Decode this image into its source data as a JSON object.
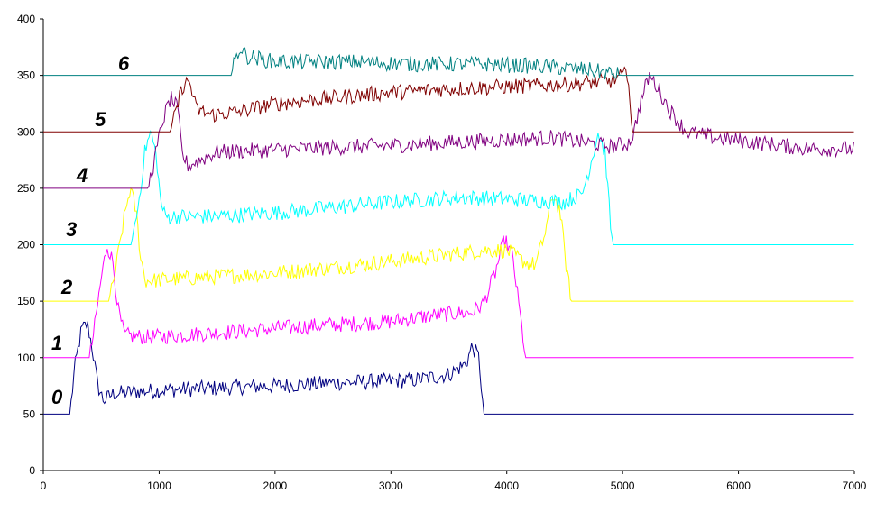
{
  "chart_data": {
    "type": "line",
    "title": "",
    "xlabel": "",
    "ylabel": "",
    "xlim": [
      0,
      7000
    ],
    "ylim": [
      0,
      400
    ],
    "x_ticks": [
      "0",
      "1000",
      "2000",
      "3000",
      "4000",
      "5000",
      "6000",
      "7000"
    ],
    "y_ticks": [
      "0",
      "50",
      "100",
      "150",
      "200",
      "250",
      "300",
      "350",
      "400"
    ],
    "grid": false,
    "legend": "none",
    "series": [
      {
        "label": "0",
        "color": "#000080",
        "baseline": 50,
        "points": [
          [
            0,
            50
          ],
          [
            230,
            50
          ],
          [
            270,
            90
          ],
          [
            330,
            125
          ],
          [
            380,
            130
          ],
          [
            420,
            110
          ],
          [
            470,
            75
          ],
          [
            520,
            62
          ],
          [
            600,
            68
          ],
          [
            800,
            70
          ],
          [
            1200,
            72
          ],
          [
            2000,
            75
          ],
          [
            2600,
            78
          ],
          [
            3200,
            80
          ],
          [
            3500,
            85
          ],
          [
            3650,
            95
          ],
          [
            3700,
            110
          ],
          [
            3760,
            100
          ],
          [
            3800,
            50
          ],
          [
            7000,
            50
          ]
        ]
      },
      {
        "label": "1",
        "color": "#ff00ff",
        "baseline": 100,
        "points": [
          [
            0,
            100
          ],
          [
            400,
            100
          ],
          [
            440,
            125
          ],
          [
            500,
            170
          ],
          [
            550,
            200
          ],
          [
            600,
            185
          ],
          [
            650,
            140
          ],
          [
            700,
            120
          ],
          [
            900,
            118
          ],
          [
            1500,
            122
          ],
          [
            2300,
            128
          ],
          [
            3000,
            132
          ],
          [
            3400,
            138
          ],
          [
            3700,
            140
          ],
          [
            3800,
            148
          ],
          [
            3900,
            175
          ],
          [
            3980,
            205
          ],
          [
            4050,
            190
          ],
          [
            4100,
            150
          ],
          [
            4150,
            110
          ],
          [
            4160,
            100
          ],
          [
            7000,
            100
          ]
        ]
      },
      {
        "label": "2",
        "color": "#ffff00",
        "baseline": 150,
        "points": [
          [
            0,
            150
          ],
          [
            570,
            150
          ],
          [
            620,
            175
          ],
          [
            700,
            225
          ],
          [
            750,
            250
          ],
          [
            800,
            230
          ],
          [
            840,
            190
          ],
          [
            880,
            168
          ],
          [
            1200,
            170
          ],
          [
            2000,
            175
          ],
          [
            2800,
            183
          ],
          [
            3400,
            190
          ],
          [
            3800,
            195
          ],
          [
            4000,
            195
          ],
          [
            4150,
            185
          ],
          [
            4250,
            182
          ],
          [
            4330,
            210
          ],
          [
            4400,
            245
          ],
          [
            4460,
            230
          ],
          [
            4520,
            175
          ],
          [
            4560,
            150
          ],
          [
            7000,
            150
          ]
        ]
      },
      {
        "label": "3",
        "color": "#00ffff",
        "baseline": 200,
        "points": [
          [
            0,
            200
          ],
          [
            760,
            200
          ],
          [
            820,
            235
          ],
          [
            880,
            285
          ],
          [
            930,
            300
          ],
          [
            980,
            275
          ],
          [
            1010,
            240
          ],
          [
            1050,
            225
          ],
          [
            1500,
            225
          ],
          [
            2200,
            230
          ],
          [
            3000,
            238
          ],
          [
            3600,
            242
          ],
          [
            4100,
            240
          ],
          [
            4500,
            238
          ],
          [
            4650,
            245
          ],
          [
            4720,
            270
          ],
          [
            4790,
            300
          ],
          [
            4850,
            280
          ],
          [
            4890,
            225
          ],
          [
            4910,
            200
          ],
          [
            7000,
            200
          ]
        ]
      },
      {
        "label": "4",
        "color": "#800080",
        "baseline": 250,
        "points": [
          [
            0,
            250
          ],
          [
            900,
            250
          ],
          [
            960,
            275
          ],
          [
            1030,
            310
          ],
          [
            1100,
            330
          ],
          [
            1160,
            320
          ],
          [
            1200,
            280
          ],
          [
            1250,
            270
          ],
          [
            1500,
            282
          ],
          [
            2200,
            285
          ],
          [
            3000,
            288
          ],
          [
            3800,
            292
          ],
          [
            4400,
            295
          ],
          [
            4900,
            287
          ],
          [
            5050,
            290
          ],
          [
            5100,
            300
          ],
          [
            5150,
            325
          ],
          [
            5230,
            350
          ],
          [
            5300,
            340
          ],
          [
            5400,
            320
          ],
          [
            5550,
            300
          ],
          [
            5800,
            295
          ],
          [
            6200,
            290
          ],
          [
            6600,
            285
          ],
          [
            7000,
            285
          ]
        ]
      },
      {
        "label": "5",
        "color": "#800000",
        "baseline": 300,
        "points": [
          [
            0,
            300
          ],
          [
            1100,
            300
          ],
          [
            1150,
            320
          ],
          [
            1200,
            340
          ],
          [
            1260,
            345
          ],
          [
            1320,
            320
          ],
          [
            1450,
            315
          ],
          [
            1700,
            318
          ],
          [
            2000,
            325
          ],
          [
            2500,
            330
          ],
          [
            3000,
            335
          ],
          [
            3500,
            338
          ],
          [
            4000,
            340
          ],
          [
            4500,
            342
          ],
          [
            4900,
            345
          ],
          [
            5050,
            352
          ],
          [
            5080,
            300
          ],
          [
            7000,
            300
          ]
        ]
      },
      {
        "label": "6",
        "color": "#008080",
        "baseline": 350,
        "points": [
          [
            0,
            350
          ],
          [
            1620,
            350
          ],
          [
            1660,
            365
          ],
          [
            1700,
            375
          ],
          [
            1750,
            367
          ],
          [
            2000,
            362
          ],
          [
            2600,
            362
          ],
          [
            3200,
            360
          ],
          [
            3800,
            360
          ],
          [
            4300,
            358
          ],
          [
            4700,
            355
          ],
          [
            5000,
            350
          ],
          [
            7000,
            350
          ]
        ]
      }
    ],
    "series_labels": [
      "0",
      "1",
      "2",
      "3",
      "4",
      "5",
      "6"
    ]
  }
}
